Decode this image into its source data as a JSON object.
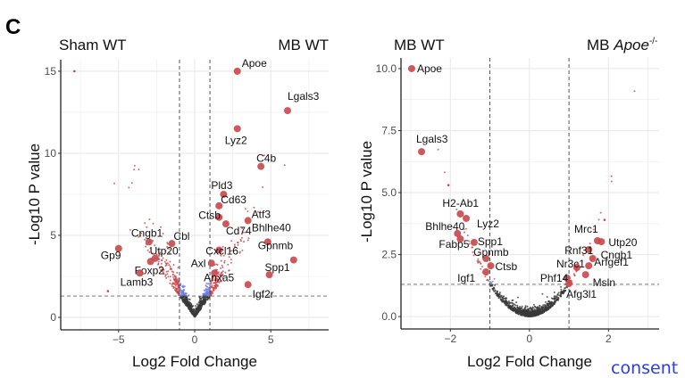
{
  "panel_letter": "C",
  "consent_link": "consent",
  "colors": {
    "significant": "#c9474b",
    "fold_only": "#4d8f2e",
    "p_only": "#6a7be6",
    "not_significant": "#3a3a3a",
    "grid": "#ebebeb"
  },
  "chart_data": [
    {
      "type": "scatter",
      "subtype": "volcano",
      "title_left": "Sham WT",
      "title_right": "MB WT",
      "xlabel": "Log2 Fold Change",
      "ylabel": "-Log10 P value",
      "xlim": [
        -8.8,
        8.8
      ],
      "ylim": [
        -0.76,
        15.7
      ],
      "xticks": [
        "-5",
        "0",
        "5"
      ],
      "xtick_values": [
        -5,
        0,
        5
      ],
      "yticks": [
        "0",
        "5",
        "10",
        "15"
      ],
      "ytick_values": [
        0,
        5,
        10,
        15
      ],
      "fold_change_threshold": [
        -1,
        1
      ],
      "p_value_threshold": 1.3,
      "grid": true,
      "labeled_points": [
        {
          "gene": "Apoe",
          "x": 2.8,
          "y": 15.0
        },
        {
          "gene": "Lgals3",
          "x": 6.1,
          "y": 12.6
        },
        {
          "gene": "Lyz2",
          "x": 2.8,
          "y": 11.5
        },
        {
          "gene": "C4b",
          "x": 4.35,
          "y": 9.2
        },
        {
          "gene": "Pld3",
          "x": 1.9,
          "y": 7.5
        },
        {
          "gene": "Cd63",
          "x": 1.6,
          "y": 6.8
        },
        {
          "gene": "Ctsb",
          "x": 1.6,
          "y": 6.1
        },
        {
          "gene": "Atf3",
          "x": 3.5,
          "y": 5.9
        },
        {
          "gene": "Cd74",
          "x": 2.05,
          "y": 5.7
        },
        {
          "gene": "Bhlhe40",
          "x": 4.8,
          "y": 4.6
        },
        {
          "gene": "Cxcl16",
          "x": 1.6,
          "y": 4.1
        },
        {
          "gene": "Gpnmb",
          "x": 6.5,
          "y": 3.5
        },
        {
          "gene": "Axl",
          "x": 1.1,
          "y": 3.3
        },
        {
          "gene": "Spp1",
          "x": 4.9,
          "y": 2.6
        },
        {
          "gene": "Anxa5",
          "x": 1.3,
          "y": 2.7
        },
        {
          "gene": "Igf2r",
          "x": 3.5,
          "y": 2.0
        },
        {
          "gene": "Cngb1",
          "x": -3.0,
          "y": 4.6
        },
        {
          "gene": "Cbl",
          "x": -1.5,
          "y": 4.5
        },
        {
          "gene": "Gp9",
          "x": -5.0,
          "y": 4.2
        },
        {
          "gene": "Utp20",
          "x": -2.6,
          "y": 3.6
        },
        {
          "gene": "Foxp2",
          "x": -2.9,
          "y": 3.4
        },
        {
          "gene": "Lamb3",
          "x": -3.6,
          "y": 2.7
        }
      ],
      "outliers": [
        {
          "x": -7.9,
          "y": 15.0
        },
        {
          "x": -5.7,
          "y": 1.6
        }
      ]
    },
    {
      "type": "scatter",
      "subtype": "volcano",
      "title_left": "MB WT",
      "title_right_main": "MB ",
      "title_right_italic": "Apoe",
      "title_right_sup": "-/-",
      "xlabel": "Log2 Fold Change",
      "ylabel": "-Log10 P value",
      "xlim": [
        -3.25,
        3.28
      ],
      "ylim": [
        -0.5,
        10.43
      ],
      "xticks": [
        "-2",
        "0",
        "2"
      ],
      "xtick_values": [
        -2,
        0,
        2
      ],
      "yticks": [
        "0.0",
        "2.5",
        "5.0",
        "7.5",
        "10.0"
      ],
      "ytick_values": [
        0,
        2.5,
        5,
        7.5,
        10
      ],
      "fold_change_threshold": [
        -1,
        1
      ],
      "p_value_threshold": 1.3,
      "grid": true,
      "labeled_points": [
        {
          "gene": "Apoe",
          "x": -2.98,
          "y": 10.0
        },
        {
          "gene": "Lgals3",
          "x": -2.73,
          "y": 6.65
        },
        {
          "gene": "H2-Ab1",
          "x": -1.75,
          "y": 4.14
        },
        {
          "gene": "Lyz2",
          "x": -1.6,
          "y": 3.96
        },
        {
          "gene": "Bhlhe40",
          "x": -1.82,
          "y": 3.35
        },
        {
          "gene": "Fabp5",
          "x": -1.75,
          "y": 3.13
        },
        {
          "gene": "Spp1",
          "x": -1.4,
          "y": 2.99
        },
        {
          "gene": "Gpnmb",
          "x": -1.1,
          "y": 2.34
        },
        {
          "gene": "Ctsb",
          "x": -0.98,
          "y": 2.05
        },
        {
          "gene": "Igf1",
          "x": -1.1,
          "y": 1.8
        },
        {
          "gene": "Mrc1",
          "x": 1.72,
          "y": 3.06
        },
        {
          "gene": "Utp20",
          "x": 1.82,
          "y": 3.02
        },
        {
          "gene": "Rnf31",
          "x": 1.5,
          "y": 2.7
        },
        {
          "gene": "Cngb1",
          "x": 1.6,
          "y": 2.34
        },
        {
          "gene": "Arfgef1",
          "x": 1.5,
          "y": 2.05
        },
        {
          "gene": "Nr3c1",
          "x": 1.2,
          "y": 1.98
        },
        {
          "gene": "Msln",
          "x": 1.42,
          "y": 1.69
        },
        {
          "gene": "Phf14",
          "x": 0.95,
          "y": 1.55
        },
        {
          "gene": "Afg3l1",
          "x": 1.0,
          "y": 1.33
        }
      ],
      "outliers": [
        {
          "x": -2.05,
          "y": 5.3
        },
        {
          "x": 1.9,
          "y": 3.9
        }
      ]
    }
  ]
}
